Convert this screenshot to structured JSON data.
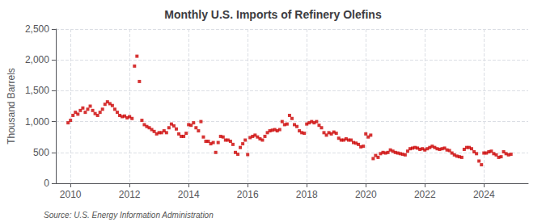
{
  "chart_data": {
    "type": "scatter",
    "title": "Monthly U.S. Imports of Refinery Olefins",
    "ylabel": "Thousand Barrels",
    "annotations": [
      "Source: U.S. Energy Information Administration"
    ],
    "color": "#cc0000",
    "marker": "square",
    "grid": true,
    "xlim": [
      2009.5,
      2025.5
    ],
    "xticks": [
      2010,
      2012,
      2014,
      2016,
      2018,
      2020,
      2022,
      2024
    ],
    "ylim": [
      0,
      2500
    ],
    "yticks": [
      0,
      500,
      {
        "value": 1000,
        "label": "1,000"
      },
      {
        "value": 1500,
        "label": "1,500"
      },
      {
        "value": 2000,
        "label": "2,000"
      },
      {
        "value": 2500,
        "label": "2,500"
      }
    ],
    "x": [
      2009.917,
      2010.0,
      2010.083,
      2010.167,
      2010.25,
      2010.333,
      2010.417,
      2010.5,
      2010.583,
      2010.667,
      2010.75,
      2010.833,
      2010.917,
      2011.0,
      2011.083,
      2011.167,
      2011.25,
      2011.333,
      2011.417,
      2011.5,
      2011.583,
      2011.667,
      2011.75,
      2011.833,
      2011.917,
      2012.0,
      2012.083,
      2012.167,
      2012.25,
      2012.333,
      2012.417,
      2012.5,
      2012.583,
      2012.667,
      2012.75,
      2012.833,
      2012.917,
      2013.0,
      2013.083,
      2013.167,
      2013.25,
      2013.333,
      2013.417,
      2013.5,
      2013.583,
      2013.667,
      2013.75,
      2013.833,
      2013.917,
      2014.0,
      2014.083,
      2014.167,
      2014.25,
      2014.333,
      2014.417,
      2014.5,
      2014.583,
      2014.667,
      2014.75,
      2014.833,
      2014.917,
      2015.0,
      2015.083,
      2015.167,
      2015.25,
      2015.333,
      2015.417,
      2015.5,
      2015.583,
      2015.667,
      2015.75,
      2015.833,
      2015.917,
      2016.0,
      2016.083,
      2016.167,
      2016.25,
      2016.333,
      2016.417,
      2016.5,
      2016.583,
      2016.667,
      2016.75,
      2016.833,
      2016.917,
      2017.0,
      2017.083,
      2017.167,
      2017.25,
      2017.333,
      2017.417,
      2017.5,
      2017.583,
      2017.667,
      2017.75,
      2017.833,
      2017.917,
      2018.0,
      2018.083,
      2018.167,
      2018.25,
      2018.333,
      2018.417,
      2018.5,
      2018.583,
      2018.667,
      2018.75,
      2018.833,
      2018.917,
      2019.0,
      2019.083,
      2019.167,
      2019.25,
      2019.333,
      2019.417,
      2019.5,
      2019.583,
      2019.667,
      2019.75,
      2019.833,
      2019.917,
      2020.0,
      2020.083,
      2020.167,
      2020.25,
      2020.333,
      2020.417,
      2020.5,
      2020.583,
      2020.667,
      2020.75,
      2020.833,
      2020.917,
      2021.0,
      2021.083,
      2021.167,
      2021.25,
      2021.333,
      2021.417,
      2021.5,
      2021.583,
      2021.667,
      2021.75,
      2021.833,
      2021.917,
      2022.0,
      2022.083,
      2022.167,
      2022.25,
      2022.333,
      2022.417,
      2022.5,
      2022.583,
      2022.667,
      2022.75,
      2022.833,
      2022.917,
      2023.0,
      2023.083,
      2023.167,
      2023.25,
      2023.333,
      2023.417,
      2023.5,
      2023.583,
      2023.667,
      2023.75,
      2023.833,
      2023.917,
      2024.0,
      2024.083,
      2024.167,
      2024.25,
      2024.333,
      2024.417,
      2024.5,
      2024.583,
      2024.667,
      2024.75,
      2024.833,
      2024.917
    ],
    "values": [
      980,
      1020,
      1100,
      1150,
      1120,
      1180,
      1220,
      1150,
      1200,
      1250,
      1180,
      1130,
      1100,
      1150,
      1200,
      1280,
      1320,
      1290,
      1260,
      1200,
      1150,
      1100,
      1080,
      1090,
      1060,
      1080,
      1050,
      1900,
      2060,
      1650,
      1020,
      950,
      920,
      900,
      870,
      840,
      800,
      820,
      820,
      850,
      820,
      900,
      960,
      930,
      880,
      800,
      760,
      760,
      810,
      950,
      940,
      980,
      900,
      850,
      1000,
      750,
      680,
      680,
      640,
      660,
      500,
      660,
      760,
      750,
      700,
      700,
      680,
      630,
      500,
      470,
      580,
      640,
      700,
      465,
      740,
      760,
      780,
      750,
      720,
      700,
      760,
      820,
      850,
      860,
      870,
      850,
      870,
      1000,
      950,
      960,
      1100,
      1050,
      950,
      920,
      850,
      820,
      810,
      960,
      980,
      1000,
      980,
      1000,
      940,
      900,
      820,
      780,
      820,
      800,
      830,
      810,
      730,
      700,
      700,
      720,
      700,
      700,
      660,
      650,
      630,
      590,
      600,
      800,
      750,
      780,
      400,
      450,
      420,
      480,
      500,
      490,
      500,
      540,
      520,
      500,
      490,
      480,
      470,
      460,
      520,
      560,
      570,
      580,
      570,
      550,
      560,
      540,
      560,
      580,
      600,
      580,
      560,
      550,
      560,
      570,
      540,
      530,
      490,
      460,
      440,
      430,
      420,
      550,
      580,
      580,
      560,
      510,
      480,
      360,
      300,
      490,
      490,
      510,
      520,
      480,
      460,
      420,
      430,
      510,
      480,
      460,
      470
    ]
  }
}
